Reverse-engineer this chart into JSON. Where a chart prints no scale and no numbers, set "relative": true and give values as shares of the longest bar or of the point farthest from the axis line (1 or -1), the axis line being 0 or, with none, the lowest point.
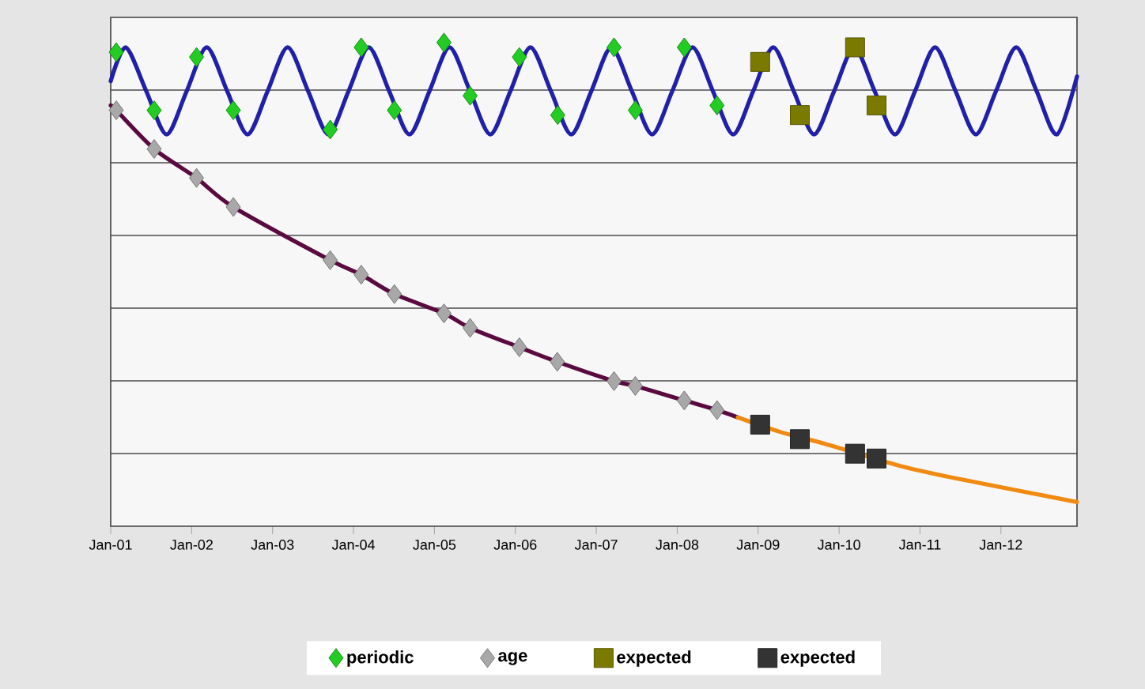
{
  "chart_data": {
    "type": "line",
    "relative": true,
    "grid": "y",
    "legend": "bottom",
    "xlim": [
      "2001-01-01",
      "2012-12-10"
    ],
    "xticks": [
      {
        "value": "2001-01-01",
        "label": "Jan-01"
      },
      {
        "value": "2002-01-01",
        "label": "Jan-02"
      },
      {
        "value": "2003-01-01",
        "label": "Jan-03"
      },
      {
        "value": "2004-01-01",
        "label": "Jan-04"
      },
      {
        "value": "2005-01-01",
        "label": "Jan-05"
      },
      {
        "value": "2006-01-01",
        "label": "Jan-06"
      },
      {
        "value": "2007-01-01",
        "label": "Jan-07"
      },
      {
        "value": "2008-01-01",
        "label": "Jan-08"
      },
      {
        "value": "2009-01-01",
        "label": "Jan-09"
      },
      {
        "value": "2010-01-01",
        "label": "Jan-10"
      },
      {
        "value": "2011-01-01",
        "label": "Jan-11"
      },
      {
        "value": "2012-01-01",
        "label": "Jan-12"
      }
    ],
    "series": [
      {
        "type": "line",
        "marker": "none",
        "color": "#2020a8",
        "x": [
          "2001-01-01",
          "2001-03-10",
          "2001-06-10",
          "2001-09-10",
          "2001-12-10",
          "2002-03-10",
          "2002-06-10",
          "2002-09-10",
          "2002-12-10",
          "2003-03-10",
          "2003-06-10",
          "2003-09-10",
          "2003-12-10",
          "2004-03-10",
          "2004-06-10",
          "2004-09-10",
          "2004-12-10",
          "2005-03-10",
          "2005-06-10",
          "2005-09-10",
          "2005-12-10",
          "2006-03-10",
          "2006-06-10",
          "2006-09-10",
          "2006-12-10",
          "2007-03-10",
          "2007-06-10",
          "2007-09-10",
          "2007-12-10",
          "2008-03-10",
          "2008-06-10",
          "2008-09-10",
          "2008-12-10",
          "2009-03-10",
          "2009-06-10",
          "2009-09-10",
          "2009-12-10",
          "2010-03-10",
          "2010-06-10",
          "2010-09-10",
          "2010-12-10",
          "2011-03-10",
          "2011-06-10",
          "2011-09-10",
          "2011-12-10",
          "2012-03-10",
          "2012-06-10",
          "2012-09-10",
          "2012-12-10"
        ],
        "values": [
          0.92,
          0.99,
          0.9,
          0.81,
          0.9,
          0.99,
          0.9,
          0.81,
          0.9,
          0.99,
          0.9,
          0.81,
          0.9,
          0.99,
          0.9,
          0.81,
          0.9,
          0.99,
          0.9,
          0.81,
          0.9,
          0.99,
          0.9,
          0.81,
          0.9,
          0.99,
          0.9,
          0.81,
          0.9,
          0.99,
          0.9,
          0.81,
          0.9,
          0.99,
          0.9,
          0.81,
          0.9,
          0.99,
          0.9,
          0.81,
          0.9,
          0.99,
          0.9,
          0.81,
          0.9,
          0.99,
          0.9,
          0.81,
          0.93
        ]
      },
      {
        "type": "line",
        "marker": "none",
        "color": "#5a0a40",
        "x": [
          "2001-01-01",
          "2001-01-26",
          "2001-07-16",
          "2002-01-23",
          "2002-07-08",
          "2003-09-18",
          "2004-02-05",
          "2004-07-04",
          "2005-02-13",
          "2005-06-11",
          "2006-01-19",
          "2006-07-09",
          "2007-03-22",
          "2007-06-26",
          "2008-02-02",
          "2008-06-29",
          "2008-10-01"
        ],
        "values": [
          0.87,
          0.86,
          0.78,
          0.72,
          0.66,
          0.55,
          0.52,
          0.48,
          0.44,
          0.41,
          0.37,
          0.34,
          0.3,
          0.29,
          0.26,
          0.24,
          0.225
        ]
      },
      {
        "type": "line",
        "marker": "none",
        "color": "#f08a10",
        "x": [
          "2008-10-01",
          "2009-04-10",
          "2009-11-01",
          "2010-10-01",
          "2011-06-01",
          "2012-12-10"
        ],
        "values": [
          0.225,
          0.195,
          0.17,
          0.125,
          0.1,
          0.05
        ]
      },
      {
        "type": "scatter",
        "name": "periodic",
        "marker": "diamond",
        "color": "#22cc22",
        "x": [
          "2001-01-26",
          "2001-07-16",
          "2002-01-23",
          "2002-07-08",
          "2003-09-18",
          "2004-02-05",
          "2004-07-04",
          "2005-02-13",
          "2005-06-11",
          "2006-01-19",
          "2006-07-11",
          "2007-03-22",
          "2007-06-26",
          "2008-02-02",
          "2008-06-29"
        ],
        "values": [
          0.98,
          0.86,
          0.97,
          0.86,
          0.82,
          0.99,
          0.86,
          1.0,
          0.89,
          0.97,
          0.85,
          0.99,
          0.86,
          0.99,
          0.87
        ]
      },
      {
        "type": "scatter",
        "name": "age",
        "marker": "diamond",
        "color": "#a8a8a8",
        "x": [
          "2001-01-26",
          "2001-07-16",
          "2002-01-23",
          "2002-07-08",
          "2003-09-18",
          "2004-02-05",
          "2004-07-04",
          "2005-02-13",
          "2005-06-11",
          "2006-01-19",
          "2006-07-09",
          "2007-03-22",
          "2007-06-26",
          "2008-02-02",
          "2008-06-29"
        ],
        "values": [
          0.86,
          0.78,
          0.72,
          0.66,
          0.55,
          0.52,
          0.48,
          0.44,
          0.41,
          0.37,
          0.34,
          0.3,
          0.29,
          0.26,
          0.24
        ]
      },
      {
        "type": "scatter",
        "name": "expected",
        "marker": "square",
        "color": "#7a7a00",
        "x": [
          "2009-01-10",
          "2009-07-08",
          "2010-03-14",
          "2010-06-19"
        ],
        "values": [
          0.96,
          0.85,
          0.99,
          0.87
        ]
      },
      {
        "type": "scatter",
        "name": "expected",
        "marker": "square",
        "color": "#333333",
        "x": [
          "2009-01-10",
          "2009-07-08",
          "2010-03-14",
          "2010-06-19"
        ],
        "values": [
          0.21,
          0.18,
          0.15,
          0.14
        ]
      }
    ]
  }
}
